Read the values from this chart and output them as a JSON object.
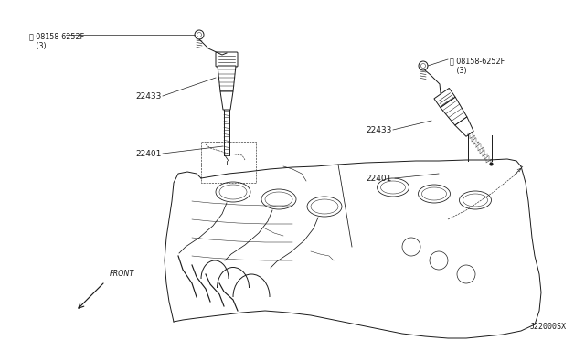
{
  "bg_color": "#ffffff",
  "diagram_id": "J22000SX",
  "line_color": "#1a1a1a",
  "labels": {
    "bolt_left": "ⓘ 08158-6252F\n   (3)",
    "bolt_right": "ⓘ 08158-6252F\n   (3)",
    "coil_left": "22433",
    "coil_right": "22433",
    "plug_left": "22401",
    "plug_right": "22401",
    "front": "FRONT"
  },
  "lw": 0.7
}
